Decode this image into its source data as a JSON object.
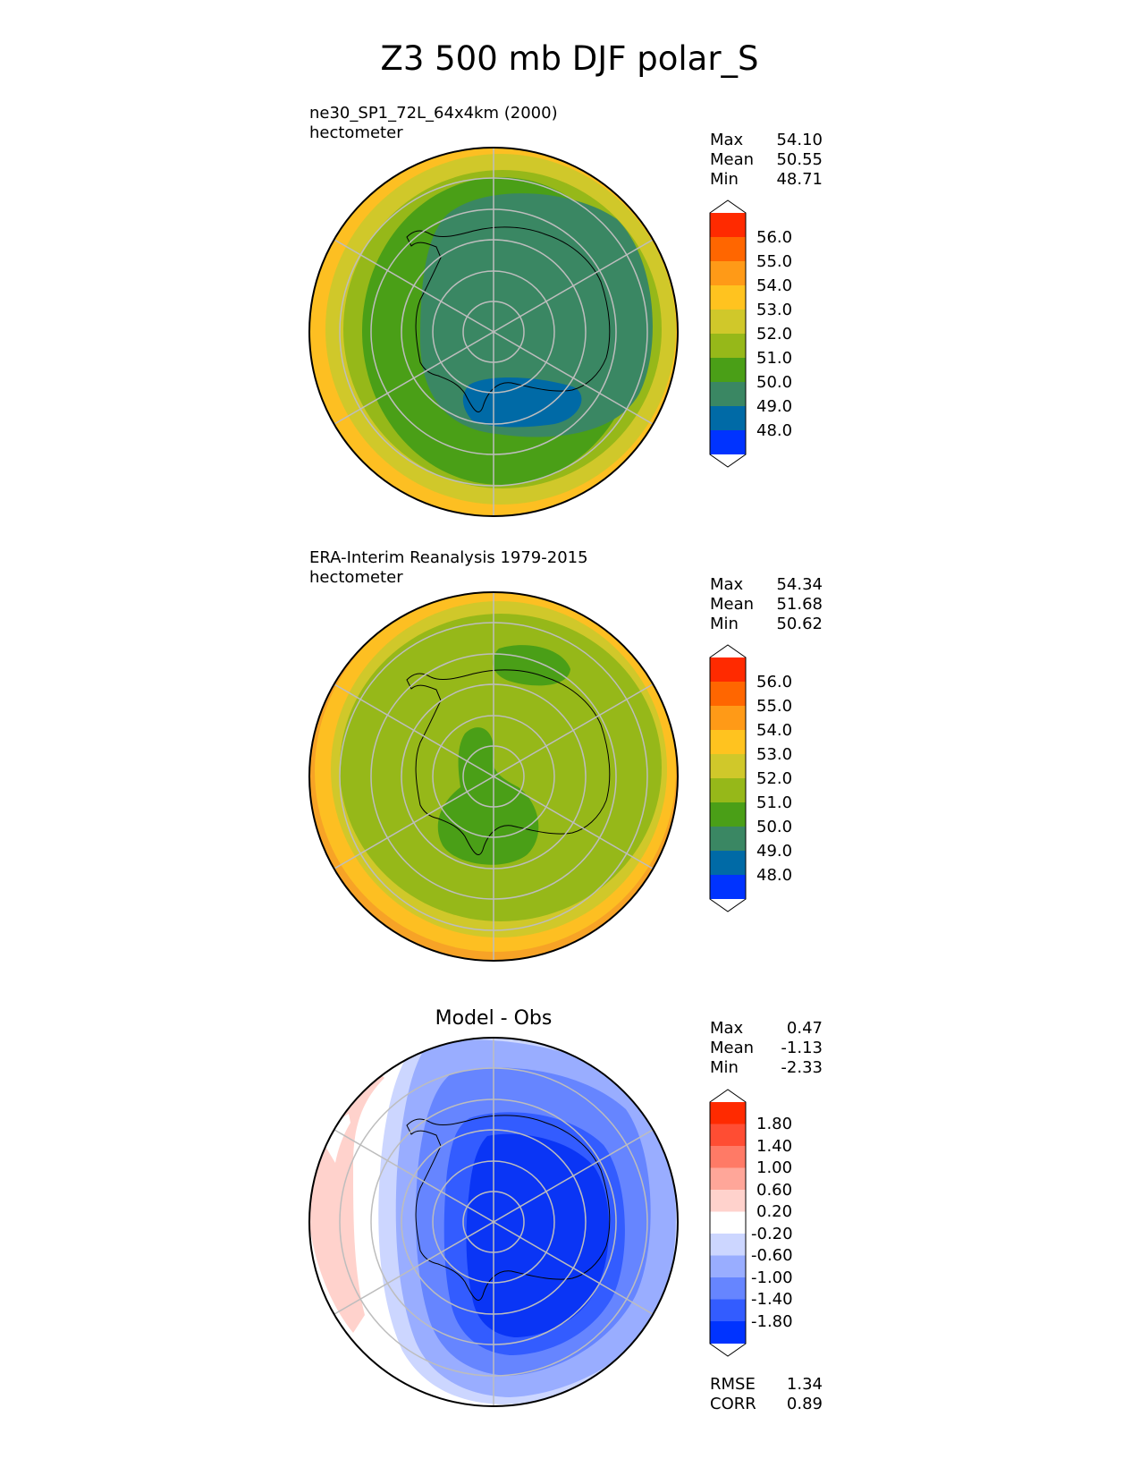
{
  "figure_title": "Z3 500 mb DJF polar_S",
  "chart_data": [
    {
      "type": "polar-contour-map",
      "projection": "south-polar-stereographic",
      "title_lines": [
        "ne30_SP1_72L_64x4km (2000)",
        "hectometer"
      ],
      "stats": [
        {
          "label": "Max",
          "value": "54.10"
        },
        {
          "label": "Mean",
          "value": "50.55"
        },
        {
          "label": "Min",
          "value": "48.71"
        }
      ],
      "colorbar": {
        "tick_labels": [
          "56.0",
          "55.0",
          "54.0",
          "53.0",
          "52.0",
          "51.0",
          "50.0",
          "49.0",
          "48.0"
        ],
        "colors": [
          "#ff2a00",
          "#ff6600",
          "#ff9a17",
          "#ffc31f",
          "#d0c82a",
          "#96b819",
          "#4a9f17",
          "#3a8763",
          "#006aa6",
          "#0033ff"
        ]
      },
      "rings_outer_to_inner": [
        "#fdbf22",
        "#d0c82a",
        "#96b819",
        "#4a9f17",
        "#3a8763"
      ]
    },
    {
      "type": "polar-contour-map",
      "projection": "south-polar-stereographic",
      "title_lines": [
        "ERA-Interim Reanalysis 1979-2015",
        "hectometer"
      ],
      "stats": [
        {
          "label": "Max",
          "value": "54.34"
        },
        {
          "label": "Mean",
          "value": "51.68"
        },
        {
          "label": "Min",
          "value": "50.62"
        }
      ],
      "colorbar": {
        "tick_labels": [
          "56.0",
          "55.0",
          "54.0",
          "53.0",
          "52.0",
          "51.0",
          "50.0",
          "49.0",
          "48.0"
        ],
        "colors": [
          "#ff2a00",
          "#ff6600",
          "#ff9a17",
          "#ffc31f",
          "#d0c82a",
          "#96b819",
          "#4a9f17",
          "#3a8763",
          "#006aa6",
          "#0033ff"
        ]
      },
      "rings_outer_to_inner": [
        "#fdbf22",
        "#d0c82a",
        "#96b819"
      ]
    },
    {
      "type": "polar-contour-map",
      "projection": "south-polar-stereographic",
      "title_lines": [
        "Model - Obs"
      ],
      "stats": [
        {
          "label": "Max",
          "value": "0.47"
        },
        {
          "label": "Mean",
          "value": "-1.13"
        },
        {
          "label": "Min",
          "value": "-2.33"
        }
      ],
      "colorbar": {
        "tick_labels": [
          "1.80",
          "1.40",
          "1.00",
          "0.60",
          "0.20",
          "-0.20",
          "-0.60",
          "-1.00",
          "-1.40",
          "-1.80"
        ],
        "colors": [
          "#ff2a00",
          "#ff4d33",
          "#ff7a66",
          "#ffa699",
          "#ffd2cc",
          "#ffffff",
          "#ccd6ff",
          "#99adff",
          "#6685ff",
          "#335cff",
          "#0033ff"
        ]
      },
      "metrics": [
        {
          "label": "RMSE",
          "value": "1.34"
        },
        {
          "label": "CORR",
          "value": "0.89"
        }
      ],
      "rings_outer_to_inner": [
        "#ccd6ff",
        "#99adff",
        "#6685ff",
        "#335cff",
        "#0a35f5"
      ]
    }
  ]
}
